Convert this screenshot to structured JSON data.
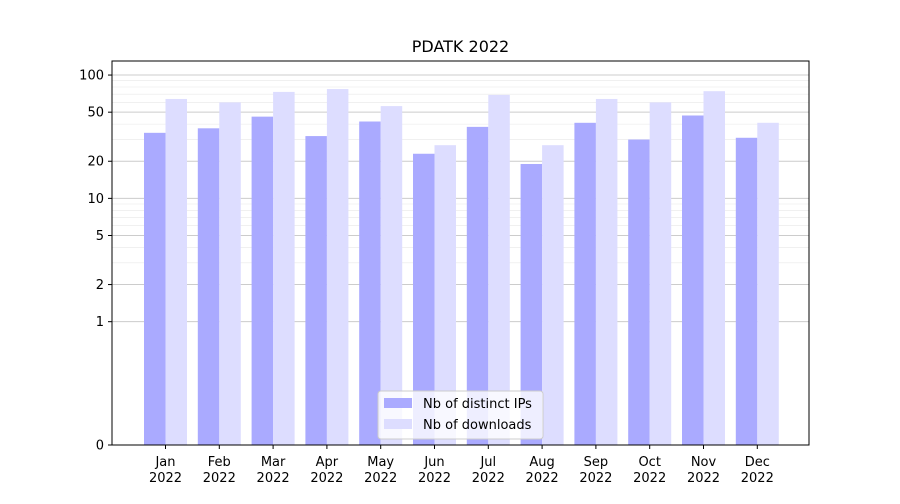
{
  "chart_data": {
    "type": "bar",
    "title": "PDATK 2022",
    "xlabel": "",
    "ylabel": "",
    "yscale": "symlog",
    "ylim": [
      0,
      130
    ],
    "y_ticks": [
      0,
      1,
      2,
      5,
      10,
      20,
      50,
      100
    ],
    "grid": "horizontal",
    "legend_position": "bottom-center",
    "categories": [
      {
        "month": "Jan",
        "year": "2022"
      },
      {
        "month": "Feb",
        "year": "2022"
      },
      {
        "month": "Mar",
        "year": "2022"
      },
      {
        "month": "Apr",
        "year": "2022"
      },
      {
        "month": "May",
        "year": "2022"
      },
      {
        "month": "Jun",
        "year": "2022"
      },
      {
        "month": "Jul",
        "year": "2022"
      },
      {
        "month": "Aug",
        "year": "2022"
      },
      {
        "month": "Sep",
        "year": "2022"
      },
      {
        "month": "Oct",
        "year": "2022"
      },
      {
        "month": "Nov",
        "year": "2022"
      },
      {
        "month": "Dec",
        "year": "2022"
      }
    ],
    "series": [
      {
        "name": "Nb of distinct IPs",
        "color": "#aaaaff",
        "values": [
          34,
          37,
          46,
          32,
          42,
          23,
          38,
          19,
          41,
          30,
          47,
          31
        ]
      },
      {
        "name": "Nb of downloads",
        "color": "#ddddff",
        "values": [
          64,
          60,
          73,
          77,
          56,
          27,
          69,
          27,
          64,
          60,
          74,
          41
        ]
      }
    ]
  }
}
